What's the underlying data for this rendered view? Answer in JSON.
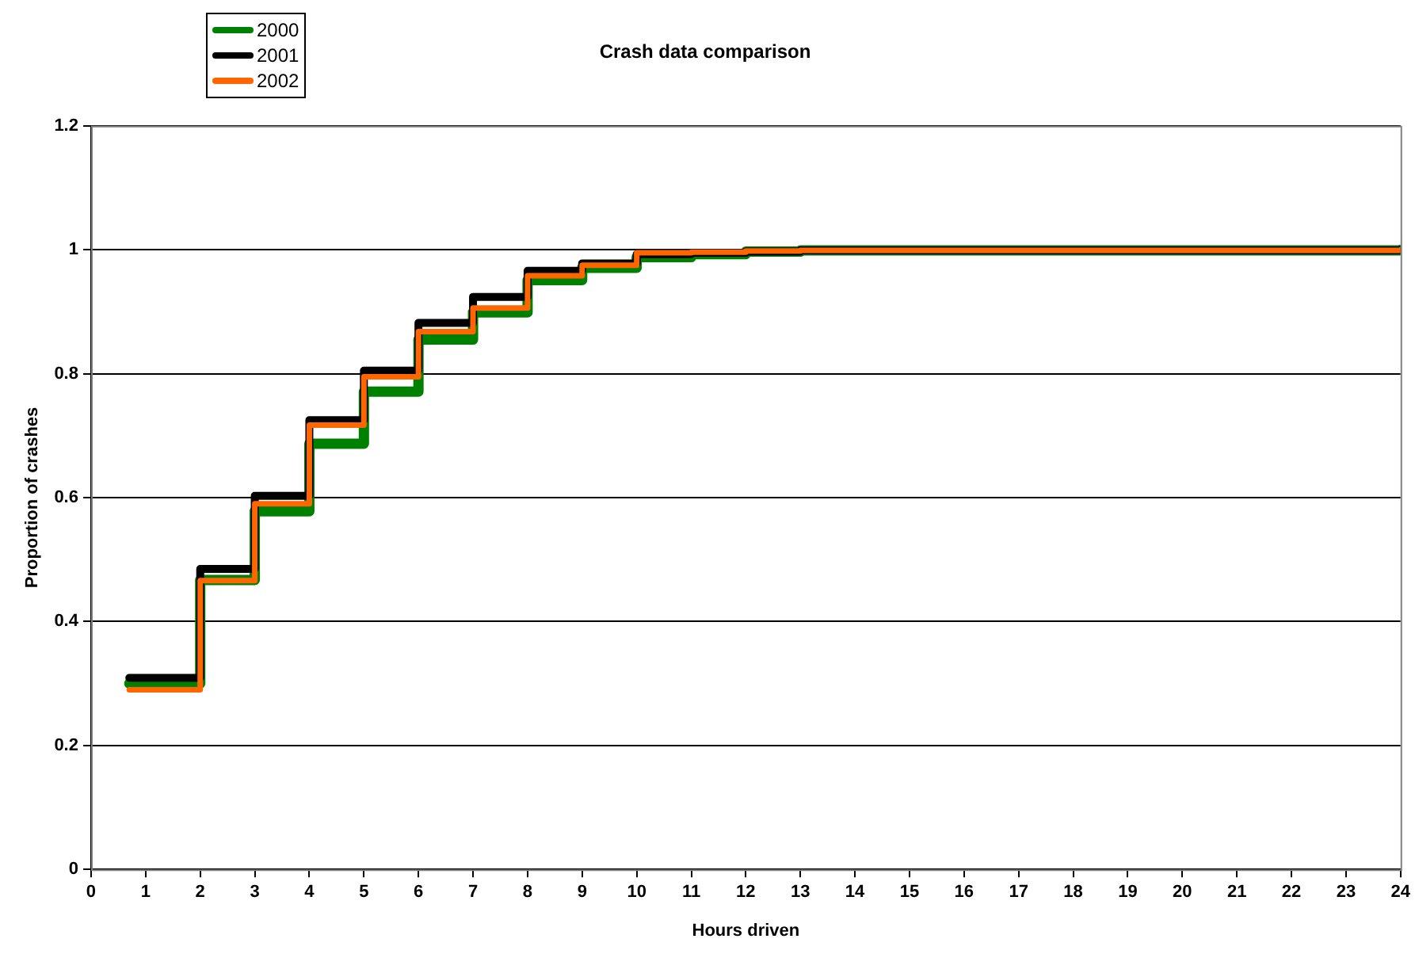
{
  "chart_data": {
    "type": "step",
    "title": "Crash data comparison",
    "xlabel": "Hours driven",
    "ylabel": "Proportion of crashes",
    "x": [
      0.7,
      2,
      3,
      4,
      5,
      6,
      7,
      8,
      9,
      10,
      11,
      12,
      13,
      24
    ],
    "series": [
      {
        "name": "2000",
        "color": "#008000",
        "values": [
          0.3,
          0.467,
          0.578,
          0.687,
          0.771,
          0.855,
          0.899,
          0.951,
          0.971,
          0.988,
          0.993,
          0.997,
          0.999,
          1
        ]
      },
      {
        "name": "2001",
        "color": "#000000",
        "values": [
          0.309,
          0.485,
          0.603,
          0.725,
          0.805,
          0.882,
          0.924,
          0.966,
          0.978,
          0.993,
          0.995,
          0.997,
          0.999,
          1
        ]
      },
      {
        "name": "2002",
        "color": "#ff6600",
        "values": [
          0.29,
          0.466,
          0.59,
          0.717,
          0.795,
          0.868,
          0.906,
          0.958,
          0.975,
          0.995,
          0.996,
          0.998,
          0.999,
          1
        ]
      }
    ],
    "xlim": [
      0,
      24
    ],
    "xticks": [
      0,
      1,
      2,
      3,
      4,
      5,
      6,
      7,
      8,
      9,
      10,
      11,
      12,
      13,
      14,
      15,
      16,
      17,
      18,
      19,
      20,
      21,
      22,
      23,
      24
    ],
    "ylim": [
      0,
      1.2
    ],
    "yticks": [
      0,
      0.2,
      0.4,
      0.6,
      0.8,
      1,
      1.2
    ],
    "grid": "y",
    "legend": "top left",
    "marker": "none",
    "line_style": "solid"
  }
}
